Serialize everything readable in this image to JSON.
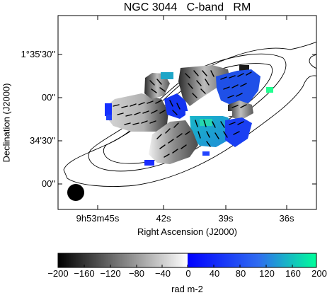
{
  "figure": {
    "title": "NGC 3044   C-band   RM",
    "xlabel": "Right Ascension (J2000)",
    "ylabel": "Declination (J2000)",
    "colorbar_label": "rad m-2",
    "y_ticks": [
      "1°35'30\"",
      "00\"",
      "34'30\"",
      "00\""
    ],
    "x_ticks": [
      "9h53m45s",
      "42s",
      "39s",
      "36s"
    ],
    "colorbar_ticks": [
      "−200",
      "−160",
      "−120",
      "−80",
      "−40",
      "0",
      "40",
      "80",
      "120",
      "160",
      "200"
    ],
    "colorbar_range": [
      -200,
      200
    ],
    "colors": {
      "negative_low": "#000000",
      "negative_high": "#ffffff",
      "positive_low": "#0000ff",
      "positive_mid": "#2f6cf0",
      "positive_high": "#00ff9a",
      "contour": "#000000",
      "beam": "#000000"
    }
  }
}
